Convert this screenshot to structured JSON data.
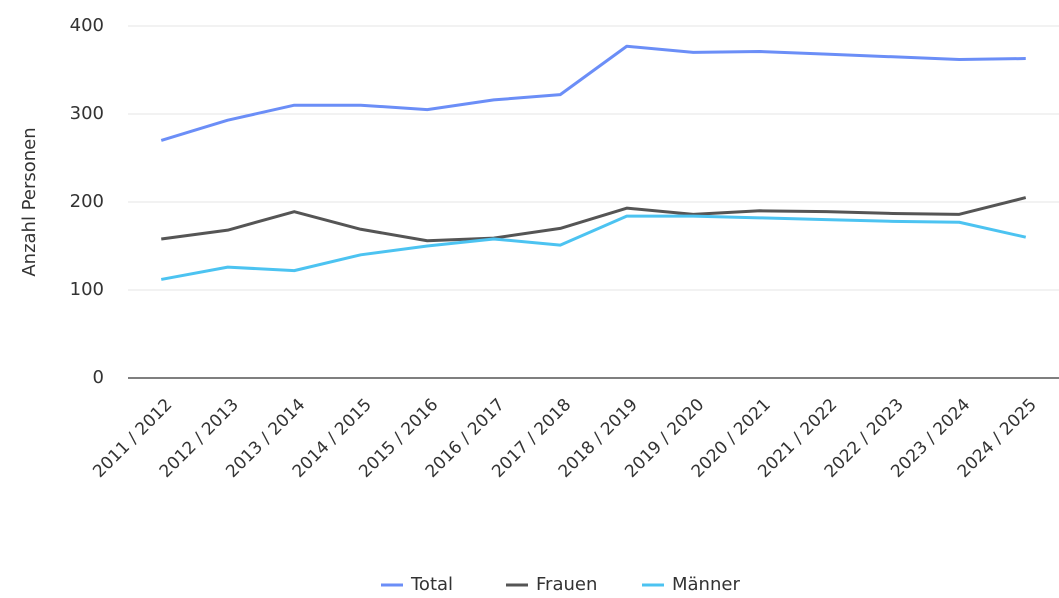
{
  "chart_data": {
    "type": "line",
    "y_label": "Anzahl Personen",
    "categories": [
      "2011 / 2012",
      "2012 / 2013",
      "2013 / 2014",
      "2014 / 2015",
      "2015 / 2016",
      "2016 / 2017",
      "2017 / 2018",
      "2018 / 2019",
      "2019 / 2020",
      "2020 / 2021",
      "2021 / 2022",
      "2022 / 2023",
      "2023 / 2024",
      "2024 / 2025"
    ],
    "series": [
      {
        "name": "Total",
        "color": "#6b8ef7",
        "values": [
          270,
          293,
          310,
          310,
          305,
          316,
          322,
          377,
          370,
          371,
          368,
          365,
          362,
          363
        ]
      },
      {
        "name": "Frauen",
        "color": "#555555",
        "values": [
          158,
          168,
          189,
          169,
          156,
          159,
          170,
          193,
          186,
          190,
          189,
          187,
          186,
          205
        ]
      },
      {
        "name": "Männer",
        "color": "#4cc3f1",
        "values": [
          112,
          126,
          122,
          140,
          150,
          158,
          151,
          184,
          184,
          182,
          180,
          178,
          177,
          160
        ]
      }
    ],
    "ylim": [
      0,
      400
    ],
    "yticks": [
      0,
      100,
      200,
      300,
      400
    ],
    "grid": true,
    "legend": "bottom"
  }
}
